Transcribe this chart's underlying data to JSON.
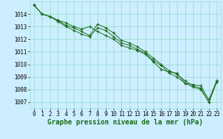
{
  "background_color": "#cceeff",
  "grid_color": "#99ddcc",
  "line_color": "#1a6b1a",
  "marker_color": "#1a6b1a",
  "xlabel": "Graphe pression niveau de la mer (hPa)",
  "xlabel_fontsize": 7,
  "ylim": [
    1006.5,
    1015.0
  ],
  "xlim": [
    -0.5,
    23.5
  ],
  "yticks": [
    1007,
    1008,
    1009,
    1010,
    1011,
    1012,
    1013,
    1014
  ],
  "xticks": [
    0,
    1,
    2,
    3,
    4,
    5,
    6,
    7,
    8,
    9,
    10,
    11,
    12,
    13,
    14,
    15,
    16,
    17,
    18,
    19,
    20,
    21,
    22,
    23
  ],
  "series": [
    [
      1014.7,
      1014.0,
      1013.8,
      1013.5,
      1013.3,
      1013.0,
      1012.8,
      1013.0,
      1012.6,
      1012.3,
      1012.0,
      1011.5,
      1011.3,
      1011.1,
      1010.8,
      1010.2,
      1009.6,
      1009.4,
      1009.3,
      1008.5,
      1008.4,
      1008.3,
      1007.2,
      1008.7
    ],
    [
      1014.7,
      1014.0,
      1013.8,
      1013.4,
      1013.0,
      1012.7,
      1012.4,
      1012.2,
      1012.9,
      1012.7,
      1012.2,
      1011.7,
      1011.5,
      1011.2,
      1010.9,
      1010.3,
      1009.9,
      1009.3,
      1009.0,
      1008.5,
      1008.2,
      1008.0,
      1007.0,
      1008.6
    ],
    [
      1014.7,
      1014.0,
      1013.8,
      1013.5,
      1013.1,
      1012.9,
      1012.6,
      1012.3,
      1013.2,
      1012.9,
      1012.5,
      1011.9,
      1011.7,
      1011.4,
      1011.0,
      1010.5,
      1010.0,
      1009.5,
      1009.2,
      1008.7,
      1008.3,
      1008.1,
      1007.0,
      1008.7
    ]
  ]
}
